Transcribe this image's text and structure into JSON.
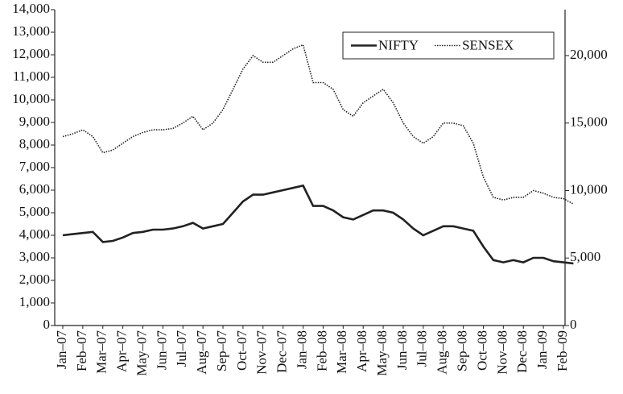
{
  "chart_data": {
    "type": "line",
    "categories": [
      "Jan–07",
      null,
      "Feb–07",
      null,
      "Mar–07",
      null,
      "Apr–07",
      null,
      "May–07",
      null,
      "Jun–07",
      null,
      "Jul–07",
      null,
      "Aug–07",
      null,
      "Sep–07",
      null,
      "Oct–07",
      null,
      "Nov–07",
      null,
      "Dec–07",
      null,
      "Jan–08",
      null,
      "Feb–08",
      null,
      "Mar–08",
      null,
      "Apr–08",
      null,
      "May–08",
      null,
      "Jun–08",
      null,
      "Jul–08",
      null,
      "Aug–08",
      null,
      "Sep–08",
      null,
      "Oct–08",
      null,
      "Nov–08",
      null,
      "Dec–08",
      null,
      "Jan–09",
      null,
      "Feb–09",
      null
    ],
    "series": [
      {
        "name": "NIFTY",
        "color": "#222222",
        "style": "solid",
        "values": [
          4000,
          4050,
          4100,
          4150,
          3700,
          3750,
          3900,
          4100,
          4150,
          4250,
          4250,
          4300,
          4400,
          4550,
          4300,
          4400,
          4500,
          5000,
          5500,
          5800,
          5800,
          5900,
          6000,
          6100,
          6200,
          5300,
          5300,
          5100,
          4800,
          4700,
          4900,
          5100,
          5100,
          5000,
          4700,
          4300,
          4000,
          4200,
          4400,
          4400,
          4300,
          4200,
          3500,
          2900,
          2800,
          2900,
          2800,
          3000,
          3000,
          2850,
          2800,
          2750
        ]
      },
      {
        "name": "SENSEX",
        "color": "#222222",
        "style": "dotted",
        "axis": "y2",
        "values": [
          14000,
          14200,
          14500,
          14000,
          12800,
          13000,
          13500,
          14000,
          14300,
          14500,
          14500,
          14600,
          15000,
          15500,
          14500,
          15000,
          16000,
          17500,
          19000,
          20000,
          19500,
          19500,
          20000,
          20500,
          20800,
          18000,
          18000,
          17500,
          16000,
          15500,
          16500,
          17000,
          17500,
          16500,
          15000,
          14000,
          13500,
          14000,
          15000,
          15000,
          14800,
          13500,
          11000,
          9500,
          9300,
          9500,
          9500,
          10000,
          9800,
          9500,
          9400,
          9000
        ]
      }
    ],
    "ylim": [
      0,
      14000
    ],
    "yticks": [
      0,
      {
        "value": 1000,
        "label": "1,000"
      },
      {
        "value": 2000,
        "label": "2,000"
      },
      {
        "value": 3000,
        "label": "3,000"
      },
      {
        "value": 4000,
        "label": "4,000"
      },
      {
        "value": 5000,
        "label": "5,000"
      },
      {
        "value": 6000,
        "label": "6,000"
      },
      {
        "value": 7000,
        "label": "7,000"
      },
      {
        "value": 8000,
        "label": "8,000"
      },
      {
        "value": 9000,
        "label": "9,000"
      },
      {
        "value": 10000,
        "label": "10,000"
      },
      {
        "value": 11000,
        "label": "11,000"
      },
      {
        "value": 12000,
        "label": "12,000"
      },
      {
        "value": 13000,
        "label": "13,000"
      },
      {
        "value": 14000,
        "label": "14,000"
      }
    ],
    "y2lim": [
      0,
      23400
    ],
    "y2ticks": [
      0,
      {
        "value": 5000,
        "label": "5,000"
      },
      {
        "value": 10000,
        "label": "10,000"
      },
      {
        "value": 15000,
        "label": "15,000"
      },
      {
        "value": 20000,
        "label": "20,000"
      }
    ],
    "legend": "top-right"
  }
}
